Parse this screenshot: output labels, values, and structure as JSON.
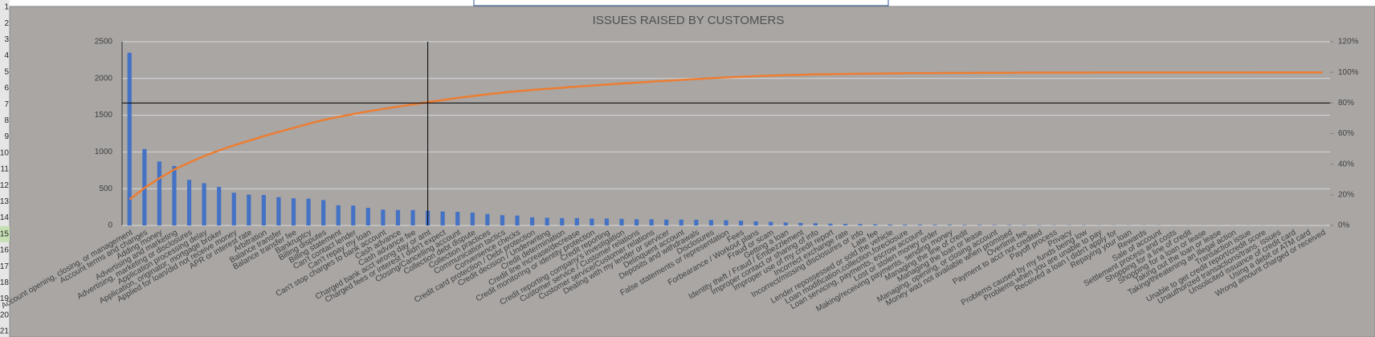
{
  "row_headers": [
    "1",
    "2",
    "3",
    "4",
    "5",
    "6",
    "7",
    "8",
    "9",
    "10",
    "11",
    "12",
    "13",
    "14",
    "15",
    "16",
    "17",
    "18",
    "19",
    "20",
    "21"
  ],
  "chart_data": {
    "type": "bar",
    "title": "ISSUES RAISED BY CUSTOMERS",
    "categories": [
      "Account opening, closing, or management",
      "Account terms and changes",
      "Adding money",
      "Advertising and marketing",
      "Advertising, marketing or disclosures",
      "Application processing delay",
      "Application, originator, mortgage broker",
      "Applied for loan/did not receive money",
      "APR or interest rate",
      "Arbitration",
      "Balance transfer",
      "Balance transfer fee",
      "Bankruptcy",
      "Billing disputes",
      "Billing statement",
      "Can't contact lender",
      "Can't repay my loan",
      "Can't stop charges to bank account",
      "Cash advance",
      "Cash advance fee",
      "Charged bank acct wrong day or amt",
      "Charged fees or interest I didn't expect",
      "Closing/Cancelling account",
      "Collection debt dispute",
      "Collection practices",
      "Communication tactics",
      "Convenience checks",
      "Credit card protection / Debt protection",
      "Credit decision / Underwriting",
      "Credit determination",
      "Credit line increase/decrease",
      "Credit monitoring or identity protection",
      "Credit reporting",
      "Credit reporting company's investigation",
      "Customer service / Customer relations",
      "Customer service/Customer relations",
      "Dealing with my lender or servicer",
      "Delinquent account",
      "Deposits and withdrawals",
      "Disclosures",
      "False statements or representation",
      "Fees",
      "Forbearance / Workout plans",
      "Fraud or scam",
      "Getting a loan",
      "Identity theft / Fraud / Embezzlement",
      "Improper contact or sharing of info",
      "Improper use of my credit report",
      "Incorrect exchange rate",
      "Incorrect/missing disclosures or info",
      "Late fee",
      "Lender repossessed or sold the vehicle",
      "Loan modification,collection,foreclosure",
      "Loan servicing, payments, escrow account",
      "Lost or stolen money order",
      "Making/receiving payments, sending money",
      "Managing the line of credit",
      "Managing the loan or lease",
      "Managing, opening, or closing account",
      "Money was not available when promised",
      "Overlimit fee",
      "Payment to acct not credited",
      "Payoff process",
      "Privacy",
      "Problems caused by my funds being low",
      "Problems when you are unable to pay",
      "Received a loan I didn't apply for",
      "Repaying your loan",
      "Rewards",
      "Sale of account",
      "Settlement process and costs",
      "Shopping for a line of credit",
      "Shopping for a loan or lease",
      "Taking out the loan or lease",
      "Taking/threatening an illegal action",
      "Transaction issue",
      "Unable to get credit report/credit score",
      "Unauthorized transactions/trans. issues",
      "Unsolicited issuance of credit card",
      "Using a debit or ATM card",
      "Wrong amount charged or received"
    ],
    "series": [
      {
        "color": "#4472c4",
        "values": [
          2350,
          1040,
          870,
          810,
          620,
          575,
          525,
          445,
          420,
          415,
          385,
          370,
          365,
          345,
          275,
          270,
          240,
          215,
          210,
          210,
          200,
          190,
          185,
          175,
          155,
          140,
          135,
          110,
          105,
          100,
          100,
          95,
          95,
          90,
          85,
          85,
          80,
          80,
          78,
          75,
          70,
          65,
          55,
          50,
          40,
          35,
          30,
          25,
          20,
          18,
          15,
          12,
          10,
          10,
          8,
          8,
          6,
          6,
          5,
          5,
          4,
          4,
          3,
          3,
          3,
          2,
          2,
          2,
          2,
          2,
          1,
          1,
          1,
          1,
          1,
          1,
          1,
          1,
          1,
          1,
          1
        ]
      },
      {
        "color": "#ed7d31",
        "axis": "y2",
        "values": [
          17.0,
          24.5,
          30.8,
          36.6,
          41.1,
          45.3,
          49.0,
          52.3,
          55.3,
          58.3,
          61.1,
          63.7,
          66.4,
          68.9,
          70.9,
          72.8,
          74.5,
          76.1,
          77.6,
          79.1,
          80.6,
          81.9,
          83.3,
          84.5,
          85.7,
          86.7,
          87.7,
          88.5,
          89.2,
          89.9,
          90.7,
          91.3,
          92.0,
          92.7,
          93.3,
          93.9,
          94.5,
          95.1,
          95.6,
          96.2,
          96.7,
          97.1,
          97.5,
          97.9,
          98.2,
          98.4,
          98.7,
          98.8,
          99.0,
          99.1,
          99.2,
          99.3,
          99.4,
          99.5,
          99.5,
          99.6,
          99.6,
          99.7,
          99.7,
          99.7,
          99.8,
          99.8,
          99.8,
          99.8,
          99.8,
          99.9,
          99.9,
          99.9,
          99.9,
          99.9,
          99.9,
          99.9,
          99.9,
          99.9,
          99.9,
          99.9,
          100,
          100,
          100,
          100,
          100
        ]
      }
    ],
    "ylim": [
      0,
      2500
    ],
    "yticks": [
      0,
      500,
      1000,
      1500,
      2000,
      2500
    ],
    "y2lim": [
      0,
      120
    ],
    "y2ticks": [
      {
        "value": 0,
        "label": "0%"
      },
      {
        "value": 20,
        "label": "20%"
      },
      {
        "value": 40,
        "label": "40%"
      },
      {
        "value": 60,
        "label": "60%"
      },
      {
        "value": 80,
        "label": "80%"
      },
      {
        "value": 100,
        "label": "100%"
      },
      {
        "value": 120,
        "label": "120%"
      }
    ],
    "grid": true
  }
}
